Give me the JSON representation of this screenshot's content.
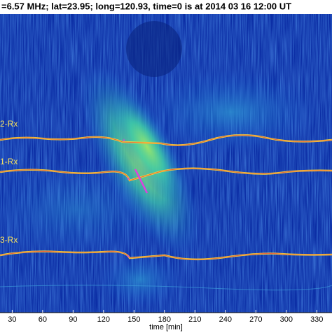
{
  "chart_data": {
    "type": "spectrogram",
    "title": "=6.57 MHz;  lat=23.95; long=120.93, time=0 is at 2014 03 16 12:00 UT",
    "xlabel": "time [min]",
    "xlim": [
      18,
      345
    ],
    "xticks": [
      30,
      60,
      90,
      120,
      150,
      180,
      210,
      240,
      270,
      300,
      330
    ],
    "annotations": [
      "2-Rx",
      "1-Rx",
      "3-Rx"
    ]
  }
}
